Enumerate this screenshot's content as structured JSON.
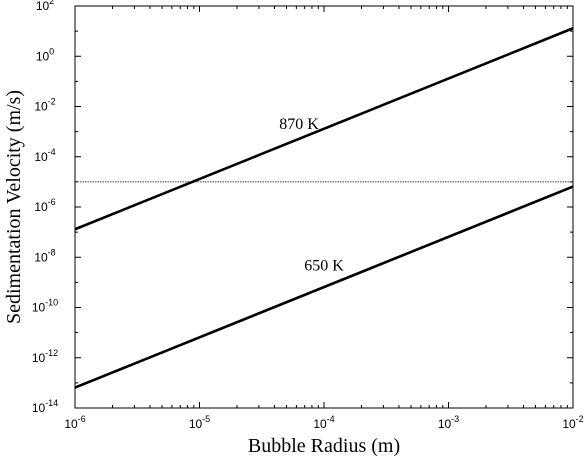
{
  "chart_data": {
    "type": "line",
    "xscale": "log",
    "yscale": "log",
    "xlabel": "Bubble Radius (m)",
    "ylabel": "Sedimentation Velocity (m/s)",
    "xlim": [
      1e-06,
      0.01
    ],
    "ylim": [
      1e-14,
      100.0
    ],
    "x_ticks": [
      {
        "base": "10",
        "exp": "-6",
        "value": 1e-06
      },
      {
        "base": "10",
        "exp": "-5",
        "value": 1e-05
      },
      {
        "base": "10",
        "exp": "-4",
        "value": 0.0001
      },
      {
        "base": "10",
        "exp": "-3",
        "value": 0.001
      },
      {
        "base": "10",
        "exp": "-2",
        "value": 0.01
      }
    ],
    "y_ticks": [
      {
        "base": "10",
        "exp": "-14",
        "value": 1e-14
      },
      {
        "base": "10",
        "exp": "-12",
        "value": 1e-12
      },
      {
        "base": "10",
        "exp": "-10",
        "value": 1e-10
      },
      {
        "base": "10",
        "exp": "-8",
        "value": 1e-08
      },
      {
        "base": "10",
        "exp": "-6",
        "value": 1e-06
      },
      {
        "base": "10",
        "exp": "-4",
        "value": 0.0001
      },
      {
        "base": "10",
        "exp": "-2",
        "value": 0.01
      },
      {
        "base": "10",
        "exp": "0",
        "value": 1
      },
      {
        "base": "10",
        "exp": "2",
        "value": 100
      }
    ],
    "grid": false,
    "series": [
      {
        "name": "870 K",
        "x": [
          1e-06,
          0.01
        ],
        "y": [
          1.3e-07,
          13
        ],
        "style": "solid-thick",
        "label_at": [
          6.3e-05,
          0.0013
        ]
      },
      {
        "name": "650 K",
        "x": [
          1e-06,
          0.01
        ],
        "y": [
          6.5e-14,
          6.5e-06
        ],
        "style": "solid-thick",
        "label_at": [
          0.0001,
          3e-09
        ]
      },
      {
        "name": "",
        "x": [
          1e-06,
          0.01
        ],
        "y": [
          1e-05,
          1e-05
        ],
        "style": "dotted-thin"
      }
    ],
    "colors": {
      "line": "#000000",
      "background": "#ffffff"
    }
  }
}
